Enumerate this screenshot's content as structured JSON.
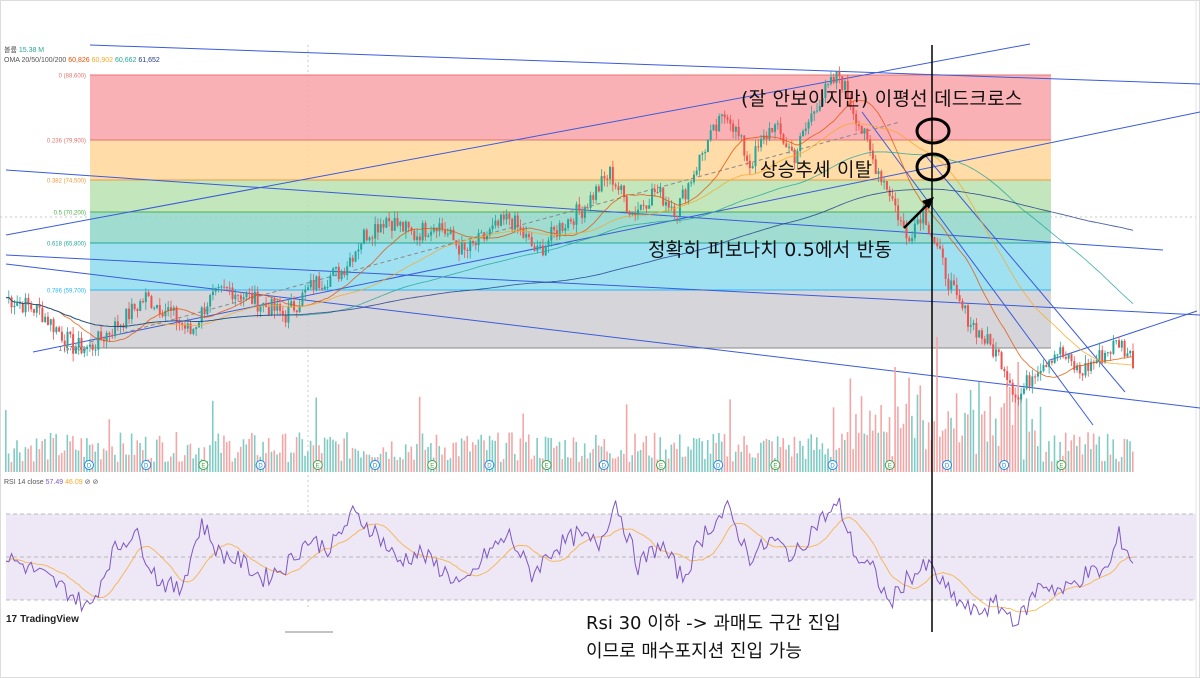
{
  "header": {
    "volume_label": "볼륨",
    "volume_value": "15.38 M",
    "ma_label": "OMA 20/50/100/200",
    "ma_values": [
      {
        "value": "60,826",
        "color": "#e65100"
      },
      {
        "value": "60,902",
        "color": "#f9a825"
      },
      {
        "value": "60,662",
        "color": "#26a69a"
      },
      {
        "value": "61,652",
        "color": "#1e3a8a"
      }
    ]
  },
  "rsi_header": {
    "label": "RSI 14 close",
    "value1": "57.49",
    "value2": "46.09"
  },
  "annotations": {
    "dead_cross": "(잘 안보이지만) 이평선 데드크로스",
    "uptrend_break": "상승추세 이탈",
    "fib_bounce": "정확히 피보나치 0.5에서 반동",
    "rsi_note_1": "Rsi 30 이하 -> 과매도 구간 진입",
    "rsi_note_2": "이므로 매수포지션 진입 가능"
  },
  "branding": {
    "logo_text": "TradingView",
    "logo_mark": "17"
  },
  "event_markers": [
    "D",
    "D",
    "E",
    "D",
    "E",
    "D",
    "E",
    "D",
    "E",
    "D",
    "E",
    "D",
    "E",
    "D",
    "E",
    "D",
    "D",
    "E"
  ],
  "colors": {
    "up": "#26a69a",
    "down": "#ef5350",
    "trendline": "#3b5bdb",
    "rsi_line": "#7e57c2",
    "rsi_ma": "#f9a825",
    "rsi_band": "#ede7f6"
  },
  "chart_data": [
    {
      "type": "candlestick",
      "title": "",
      "fib_retracement": {
        "levels": [
          {
            "ratio": "0",
            "price": "88,600",
            "color": "#f9a3a8"
          },
          {
            "ratio": "0.236",
            "price": "79,900",
            "color": "#ffd699"
          },
          {
            "ratio": "0.382",
            "price": "74,500",
            "color": "#b9e2b2"
          },
          {
            "ratio": "0.5",
            "price": "70,200",
            "color": "#8fd6c8"
          },
          {
            "ratio": "0.618",
            "price": "65,800",
            "color": "#8fdcef"
          },
          {
            "ratio": "0.786",
            "price": "59,700",
            "color": "#cfcfd4"
          },
          {
            "ratio": "1",
            "price": "57,800",
            "color": ""
          }
        ],
        "ylim": [
          50000,
          92000
        ]
      },
      "price_path": [
        {
          "i": 0,
          "close": 63500
        },
        {
          "i": 12,
          "close": 62000
        },
        {
          "i": 24,
          "close": 58000
        },
        {
          "i": 30,
          "close": 57800
        },
        {
          "i": 42,
          "close": 61000
        },
        {
          "i": 50,
          "close": 63500
        },
        {
          "i": 58,
          "close": 62000
        },
        {
          "i": 66,
          "close": 59500
        },
        {
          "i": 72,
          "close": 63000
        },
        {
          "i": 80,
          "close": 64500
        },
        {
          "i": 90,
          "close": 63000
        },
        {
          "i": 100,
          "close": 61500
        },
        {
          "i": 110,
          "close": 65000
        },
        {
          "i": 120,
          "close": 66500
        },
        {
          "i": 128,
          "close": 70500
        },
        {
          "i": 136,
          "close": 72500
        },
        {
          "i": 146,
          "close": 70500
        },
        {
          "i": 154,
          "close": 72000
        },
        {
          "i": 164,
          "close": 68500
        },
        {
          "i": 172,
          "close": 70500
        },
        {
          "i": 180,
          "close": 72500
        },
        {
          "i": 190,
          "close": 68500
        },
        {
          "i": 198,
          "close": 71500
        },
        {
          "i": 206,
          "close": 73500
        },
        {
          "i": 216,
          "close": 77500
        },
        {
          "i": 224,
          "close": 73000
        },
        {
          "i": 232,
          "close": 75500
        },
        {
          "i": 240,
          "close": 73500
        },
        {
          "i": 250,
          "close": 80500
        },
        {
          "i": 258,
          "close": 84500
        },
        {
          "i": 266,
          "close": 78500
        },
        {
          "i": 274,
          "close": 83000
        },
        {
          "i": 282,
          "close": 79500
        },
        {
          "i": 290,
          "close": 85500
        },
        {
          "i": 298,
          "close": 88600
        },
        {
          "i": 304,
          "close": 84000
        },
        {
          "i": 310,
          "close": 79000
        },
        {
          "i": 316,
          "close": 75500
        },
        {
          "i": 322,
          "close": 70200
        },
        {
          "i": 328,
          "close": 73500
        },
        {
          "i": 334,
          "close": 68000
        },
        {
          "i": 340,
          "close": 63000
        },
        {
          "i": 348,
          "close": 59500
        },
        {
          "i": 356,
          "close": 56500
        },
        {
          "i": 362,
          "close": 52000
        },
        {
          "i": 368,
          "close": 55500
        },
        {
          "i": 376,
          "close": 57500
        },
        {
          "i": 384,
          "close": 55000
        },
        {
          "i": 392,
          "close": 57000
        },
        {
          "i": 398,
          "close": 58500
        },
        {
          "i": 403,
          "close": 56500
        }
      ]
    },
    {
      "type": "line",
      "title": "",
      "series": [
        {
          "name": "RSI 14 close",
          "values_desc": "oscillator"
        }
      ],
      "bands": [
        30,
        50,
        70
      ],
      "ylim": [
        15,
        85
      ],
      "rsi_path": [
        {
          "i": 0,
          "v": 50
        },
        {
          "i": 10,
          "v": 44
        },
        {
          "i": 20,
          "v": 36
        },
        {
          "i": 30,
          "v": 26
        },
        {
          "i": 38,
          "v": 52
        },
        {
          "i": 46,
          "v": 62
        },
        {
          "i": 54,
          "v": 40
        },
        {
          "i": 62,
          "v": 34
        },
        {
          "i": 70,
          "v": 66
        },
        {
          "i": 76,
          "v": 52
        },
        {
          "i": 84,
          "v": 48
        },
        {
          "i": 92,
          "v": 40
        },
        {
          "i": 100,
          "v": 46
        },
        {
          "i": 108,
          "v": 58
        },
        {
          "i": 116,
          "v": 54
        },
        {
          "i": 124,
          "v": 70
        },
        {
          "i": 132,
          "v": 62
        },
        {
          "i": 140,
          "v": 48
        },
        {
          "i": 148,
          "v": 52
        },
        {
          "i": 156,
          "v": 44
        },
        {
          "i": 164,
          "v": 36
        },
        {
          "i": 172,
          "v": 52
        },
        {
          "i": 180,
          "v": 60
        },
        {
          "i": 188,
          "v": 42
        },
        {
          "i": 196,
          "v": 54
        },
        {
          "i": 204,
          "v": 60
        },
        {
          "i": 212,
          "v": 56
        },
        {
          "i": 218,
          "v": 76
        },
        {
          "i": 226,
          "v": 46
        },
        {
          "i": 234,
          "v": 56
        },
        {
          "i": 242,
          "v": 40
        },
        {
          "i": 250,
          "v": 62
        },
        {
          "i": 258,
          "v": 72
        },
        {
          "i": 266,
          "v": 50
        },
        {
          "i": 274,
          "v": 58
        },
        {
          "i": 282,
          "v": 50
        },
        {
          "i": 290,
          "v": 66
        },
        {
          "i": 298,
          "v": 74
        },
        {
          "i": 304,
          "v": 50
        },
        {
          "i": 310,
          "v": 44
        },
        {
          "i": 316,
          "v": 28
        },
        {
          "i": 322,
          "v": 40
        },
        {
          "i": 330,
          "v": 46
        },
        {
          "i": 338,
          "v": 32
        },
        {
          "i": 346,
          "v": 24
        },
        {
          "i": 354,
          "v": 28
        },
        {
          "i": 362,
          "v": 20
        },
        {
          "i": 370,
          "v": 38
        },
        {
          "i": 378,
          "v": 34
        },
        {
          "i": 386,
          "v": 42
        },
        {
          "i": 394,
          "v": 44
        },
        {
          "i": 398,
          "v": 60
        },
        {
          "i": 403,
          "v": 48
        }
      ]
    }
  ]
}
